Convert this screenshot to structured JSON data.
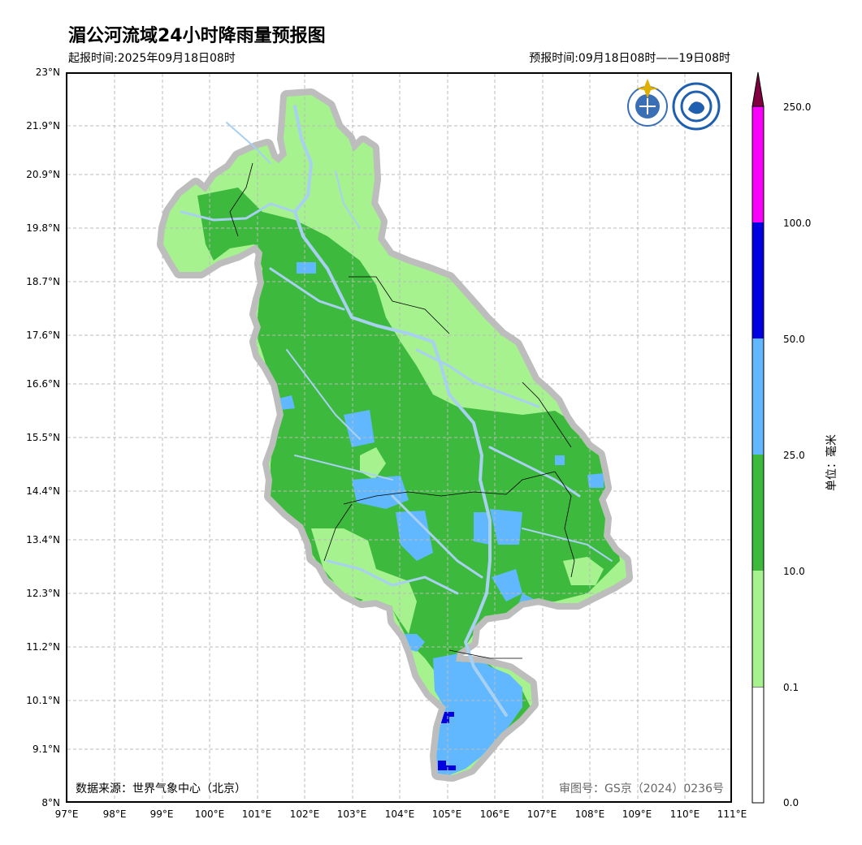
{
  "title": "湄公河流域24小时降雨量预报图",
  "issue_time": "起报时间:2025年09月18日08时",
  "forecast_period": "预报时间:09月18日08时——19日08时",
  "data_source": "数据来源：世界气象中心（北京）",
  "map_approval": "审图号：GS京（2024）0236号",
  "y_ticks": [
    "23°N",
    "21.9°N",
    "20.9°N",
    "19.8°N",
    "18.7°N",
    "17.6°N",
    "16.6°N",
    "15.5°N",
    "14.4°N",
    "13.4°N",
    "12.3°N",
    "11.2°N",
    "10.1°N",
    "9.1°N",
    "8°N"
  ],
  "x_ticks": [
    "97°E",
    "98°E",
    "99°E",
    "100°E",
    "101°E",
    "102°E",
    "103°E",
    "104°E",
    "105°E",
    "106°E",
    "107°E",
    "108°E",
    "109°E",
    "110°E",
    "111°E"
  ],
  "colorbar": {
    "unit": "单位：毫米",
    "levels": [
      "0.0",
      "0.1",
      "10.0",
      "25.0",
      "50.0",
      "100.0",
      "250.0"
    ],
    "colors": [
      "#ffffff",
      "#a6f28f",
      "#3dba3d",
      "#61b8ff",
      "#0000e1",
      "#fa00fa",
      "#800040"
    ]
  },
  "colors": {
    "basin_halo": "#bdbdbd",
    "river": "#a8d0f0",
    "grid": "#bbbbbb"
  }
}
